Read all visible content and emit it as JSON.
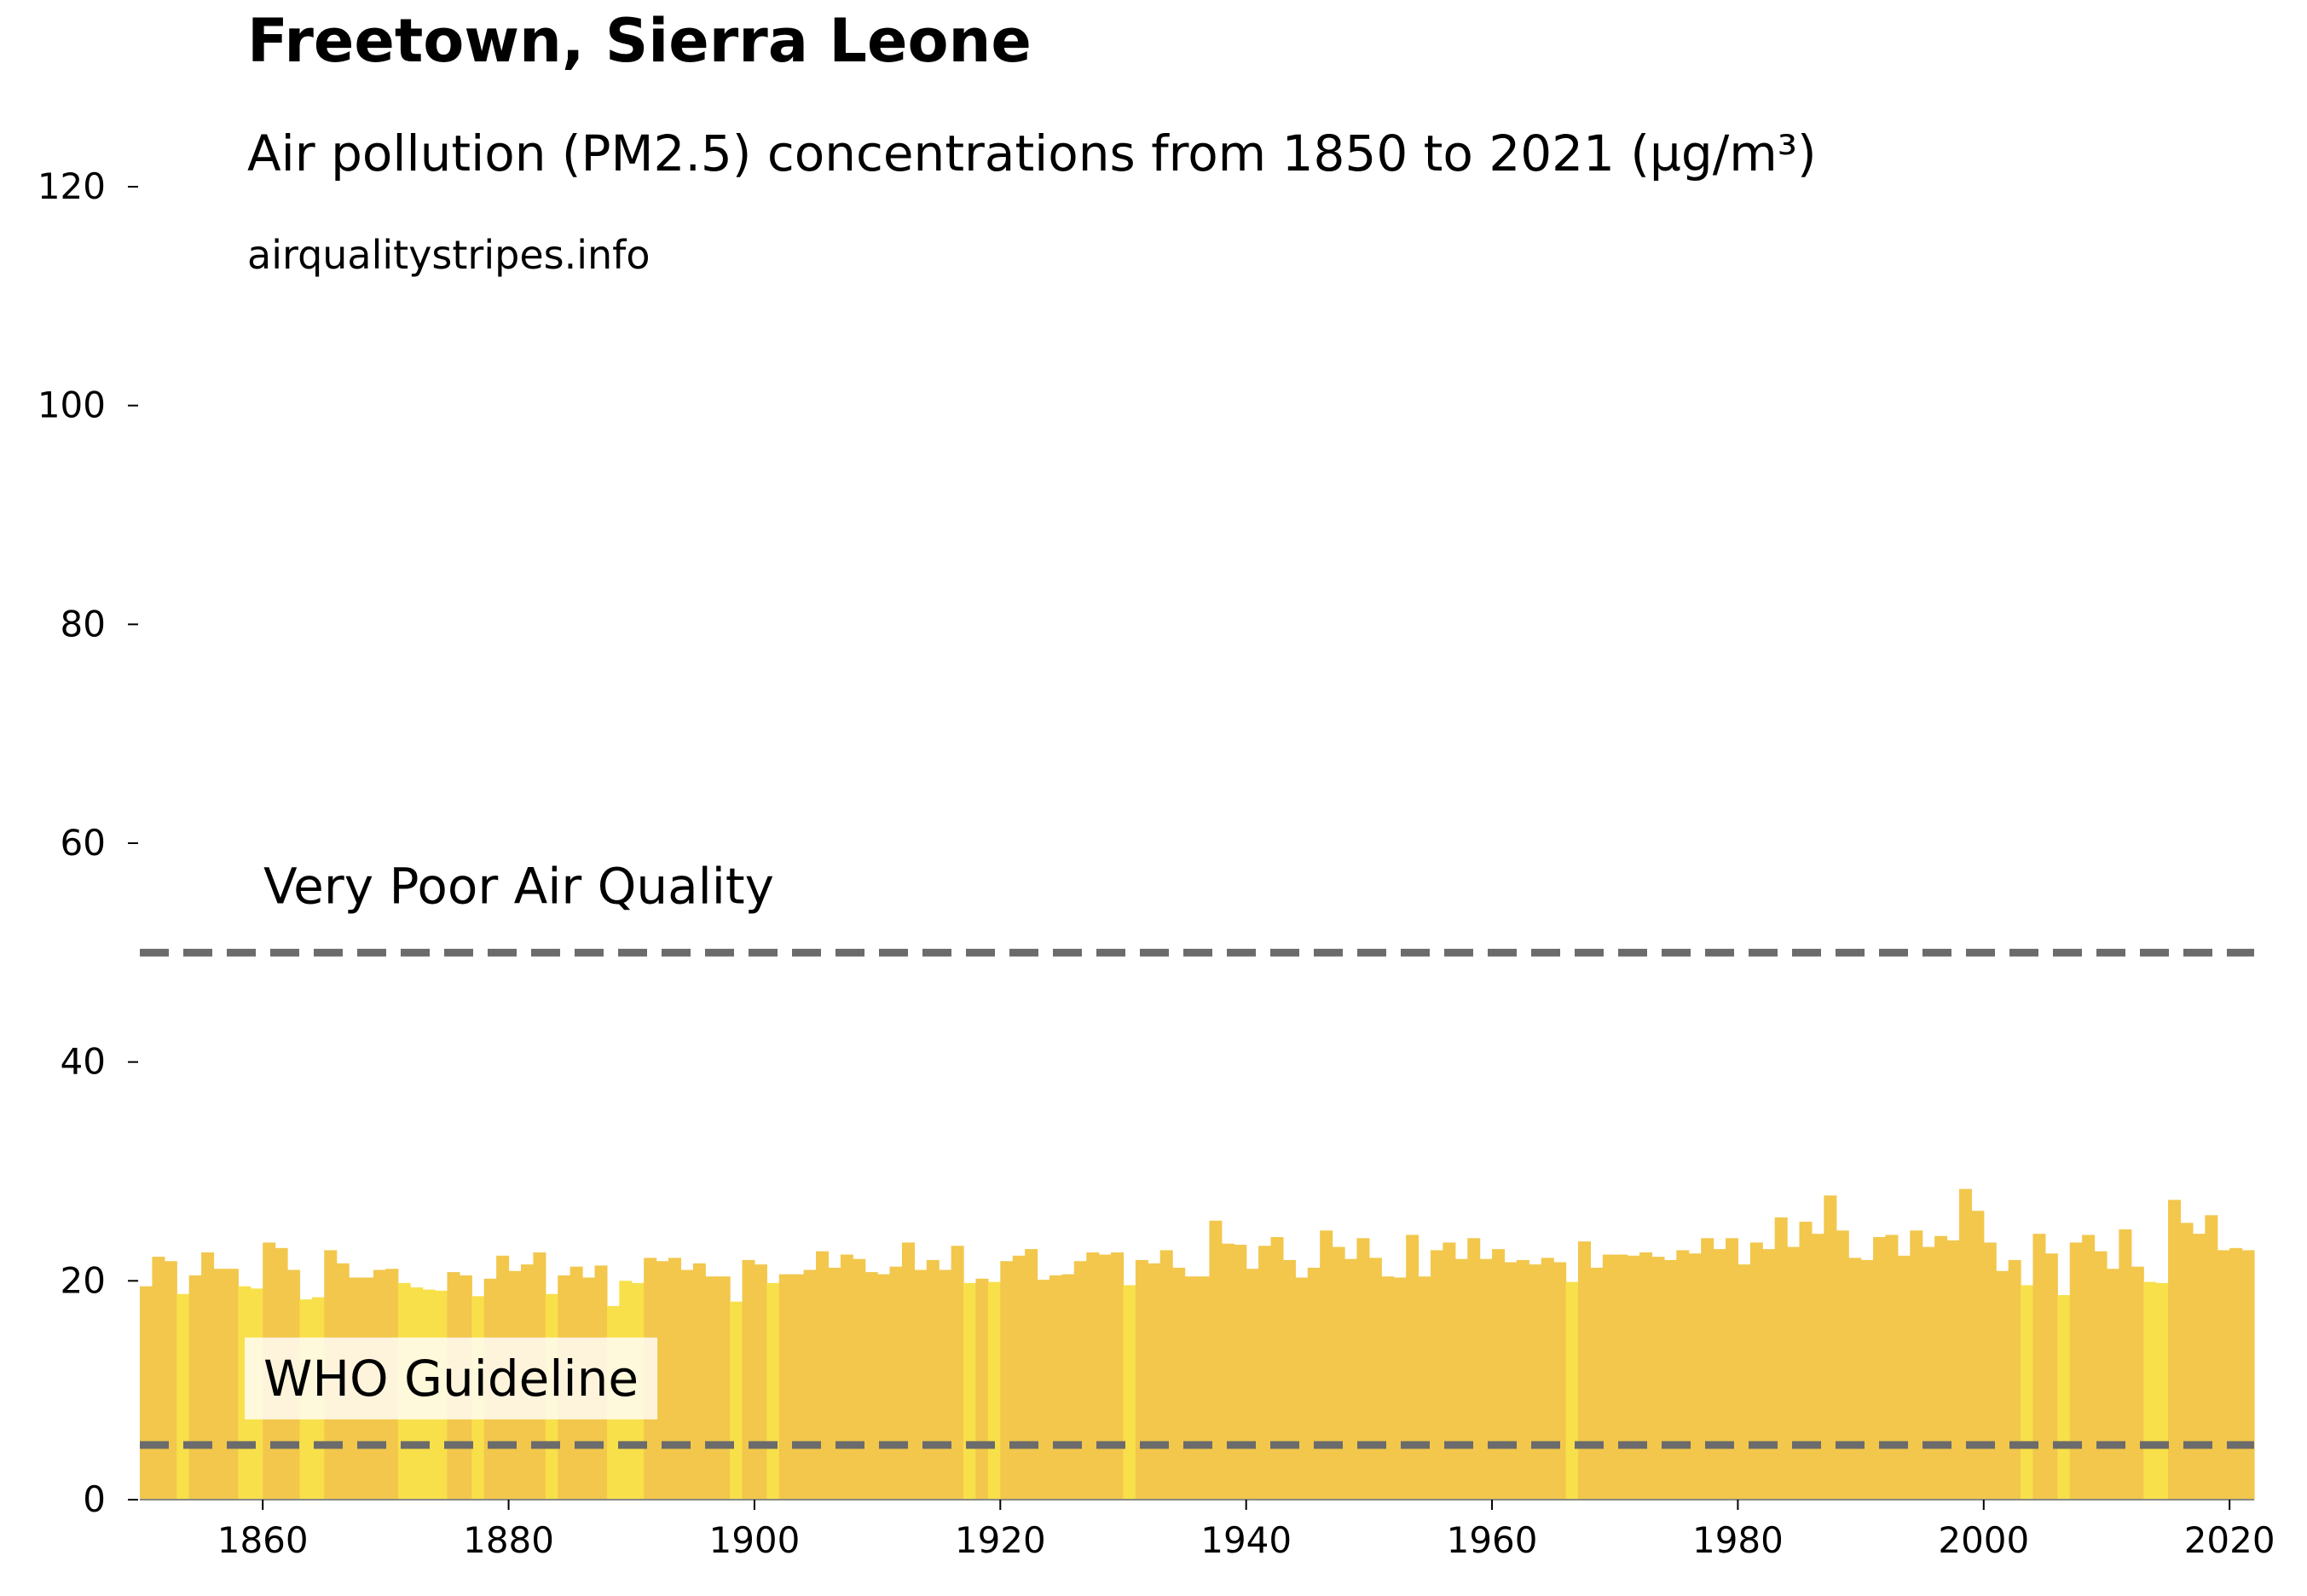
{
  "chart_data": {
    "type": "bar",
    "title": "Freetown, Sierra Leone",
    "subtitle": "Air pollution (PM2.5) concentrations from 1850 to 2021 (µg/m³)",
    "source": "airqualitystripes.info",
    "x": [
      1850,
      1851,
      1852,
      1853,
      1854,
      1855,
      1856,
      1857,
      1858,
      1859,
      1860,
      1861,
      1862,
      1863,
      1864,
      1865,
      1866,
      1867,
      1868,
      1869,
      1870,
      1871,
      1872,
      1873,
      1874,
      1875,
      1876,
      1877,
      1878,
      1879,
      1880,
      1881,
      1882,
      1883,
      1884,
      1885,
      1886,
      1887,
      1888,
      1889,
      1890,
      1891,
      1892,
      1893,
      1894,
      1895,
      1896,
      1897,
      1898,
      1899,
      1900,
      1901,
      1902,
      1903,
      1904,
      1905,
      1906,
      1907,
      1908,
      1909,
      1910,
      1911,
      1912,
      1913,
      1914,
      1915,
      1916,
      1917,
      1918,
      1919,
      1920,
      1921,
      1922,
      1923,
      1924,
      1925,
      1926,
      1927,
      1928,
      1929,
      1930,
      1931,
      1932,
      1933,
      1934,
      1935,
      1936,
      1937,
      1938,
      1939,
      1940,
      1941,
      1942,
      1943,
      1944,
      1945,
      1946,
      1947,
      1948,
      1949,
      1950,
      1951,
      1952,
      1953,
      1954,
      1955,
      1956,
      1957,
      1958,
      1959,
      1960,
      1961,
      1962,
      1963,
      1964,
      1965,
      1966,
      1967,
      1968,
      1969,
      1970,
      1971,
      1972,
      1973,
      1974,
      1975,
      1976,
      1977,
      1978,
      1979,
      1980,
      1981,
      1982,
      1983,
      1984,
      1985,
      1986,
      1987,
      1988,
      1989,
      1990,
      1991,
      1992,
      1993,
      1994,
      1995,
      1996,
      1997,
      1998,
      1999,
      2000,
      2001,
      2002,
      2003,
      2004,
      2005,
      2006,
      2007,
      2008,
      2009,
      2010,
      2011,
      2012,
      2013,
      2014,
      2015,
      2016,
      2017,
      2018,
      2019,
      2020,
      2021
    ],
    "values": [
      19.5,
      22.2,
      21.8,
      18.8,
      20.5,
      22.6,
      21.1,
      21.1,
      19.5,
      19.3,
      23.5,
      23,
      21,
      18.3,
      18.5,
      22.8,
      21.6,
      20.3,
      20.3,
      21,
      21.1,
      19.8,
      19.4,
      19.2,
      19.1,
      20.8,
      20.5,
      18.6,
      20.2,
      22.3,
      20.9,
      21.5,
      22.6,
      18.8,
      20.5,
      21.3,
      20.3,
      21.4,
      17.7,
      20,
      19.8,
      22.1,
      21.8,
      22.1,
      21,
      21.6,
      20.4,
      20.4,
      18.1,
      21.9,
      21.5,
      19.8,
      20.6,
      20.6,
      21,
      22.7,
      21.2,
      22.4,
      22,
      20.8,
      20.6,
      21.3,
      23.5,
      21,
      21.9,
      21,
      23.2,
      19.8,
      20.2,
      19.9,
      21.8,
      22.3,
      22.9,
      20.1,
      20.5,
      20.6,
      21.8,
      22.6,
      22.4,
      22.6,
      19.6,
      21.9,
      21.6,
      22.8,
      21.2,
      20.4,
      20.4,
      25.5,
      23.4,
      23.3,
      21.1,
      23.2,
      24,
      21.9,
      20.3,
      21.2,
      24.6,
      23.1,
      22,
      23.9,
      22.1,
      20.4,
      20.3,
      24.2,
      20.4,
      22.8,
      23.5,
      22,
      23.9,
      22,
      22.9,
      21.7,
      21.9,
      21.5,
      22.1,
      21.7,
      19.9,
      23.6,
      21.2,
      22.4,
      22.4,
      22.3,
      22.6,
      22.2,
      21.9,
      22.8,
      22.5,
      23.9,
      22.9,
      23.9,
      21.5,
      23.5,
      22.9,
      25.8,
      23.1,
      25.4,
      24.3,
      27.8,
      24.6,
      22.1,
      21.9,
      24,
      24.2,
      22.3,
      24.6,
      23.1,
      24.1,
      23.7,
      28.4,
      26.4,
      23.5,
      20.9,
      21.9,
      19.6,
      24.3,
      22.5,
      18.7,
      23.5,
      24.2,
      22.7,
      21.1,
      24.7,
      21.3,
      19.9,
      19.8,
      27.4,
      25.3,
      24.3,
      26,
      22.8,
      23,
      22.8
    ],
    "colors": [
      "#f2c74c",
      "#f2c74c",
      "#f2c74c",
      "#f8e04a",
      "#f2c74c",
      "#f2c74c",
      "#f2c74c",
      "#f2c74c",
      "#f8e04a",
      "#f8e04a",
      "#f2c74c",
      "#f2c74c",
      "#f2c74c",
      "#f8e04a",
      "#f8e04a",
      "#f2c74c",
      "#f2c74c",
      "#f2c74c",
      "#f2c74c",
      "#f2c74c",
      "#f2c74c",
      "#f8e04a",
      "#f8e04a",
      "#f8e04a",
      "#f8e04a",
      "#f2c74c",
      "#f2c74c",
      "#f8e04a",
      "#f2c74c",
      "#f2c74c",
      "#f2c74c",
      "#f2c74c",
      "#f2c74c",
      "#f8e04a",
      "#f2c74c",
      "#f2c74c",
      "#f2c74c",
      "#f2c74c",
      "#f8e04a",
      "#f8e04a",
      "#f8e04a",
      "#f2c74c",
      "#f2c74c",
      "#f2c74c",
      "#f2c74c",
      "#f2c74c",
      "#f2c74c",
      "#f2c74c",
      "#f8e04a",
      "#f2c74c",
      "#f2c74c",
      "#f8e04a",
      "#f2c74c",
      "#f2c74c",
      "#f2c74c",
      "#f2c74c",
      "#f2c74c",
      "#f2c74c",
      "#f2c74c",
      "#f2c74c",
      "#f2c74c",
      "#f2c74c",
      "#f2c74c",
      "#f2c74c",
      "#f2c74c",
      "#f2c74c",
      "#f2c74c",
      "#f8e04a",
      "#f2c74c",
      "#f8e04a",
      "#f2c74c",
      "#f2c74c",
      "#f2c74c",
      "#f2c74c",
      "#f2c74c",
      "#f2c74c",
      "#f2c74c",
      "#f2c74c",
      "#f2c74c",
      "#f2c74c",
      "#f8e04a",
      "#f2c74c",
      "#f2c74c",
      "#f2c74c",
      "#f2c74c",
      "#f2c74c",
      "#f2c74c",
      "#f2c74c",
      "#f2c74c",
      "#f2c74c",
      "#f2c74c",
      "#f2c74c",
      "#f2c74c",
      "#f2c74c",
      "#f2c74c",
      "#f2c74c",
      "#f2c74c",
      "#f2c74c",
      "#f2c74c",
      "#f2c74c",
      "#f2c74c",
      "#f2c74c",
      "#f2c74c",
      "#f2c74c",
      "#f2c74c",
      "#f2c74c",
      "#f2c74c",
      "#f2c74c",
      "#f2c74c",
      "#f2c74c",
      "#f2c74c",
      "#f2c74c",
      "#f2c74c",
      "#f2c74c",
      "#f2c74c",
      "#f2c74c",
      "#f8e04a",
      "#f2c74c",
      "#f2c74c",
      "#f2c74c",
      "#f2c74c",
      "#f2c74c",
      "#f2c74c",
      "#f2c74c",
      "#f2c74c",
      "#f2c74c",
      "#f2c74c",
      "#f2c74c",
      "#f2c74c",
      "#f2c74c",
      "#f2c74c",
      "#f2c74c",
      "#f2c74c",
      "#f2c74c",
      "#f2c74c",
      "#f2c74c",
      "#f2c74c",
      "#f2c74c",
      "#f2c74c",
      "#f2c74c",
      "#f2c74c",
      "#f2c74c",
      "#f2c74c",
      "#f2c74c",
      "#f2c74c",
      "#f2c74c",
      "#f2c74c",
      "#f2c74c",
      "#f2c74c",
      "#f2c74c",
      "#f2c74c",
      "#f2c74c",
      "#f2c74c",
      "#f8e04a",
      "#f2c74c",
      "#f2c74c",
      "#f8e04a",
      "#f2c74c",
      "#f2c74c",
      "#f2c74c",
      "#f2c74c",
      "#f2c74c",
      "#f2c74c",
      "#f8e04a",
      "#f8e04a",
      "#f2c74c",
      "#f2c74c",
      "#f2c74c",
      "#f2c74c",
      "#f2c74c",
      "#f2c74c",
      "#f2c74c"
    ],
    "annotations": [
      {
        "text": "Very Poor Air Quality",
        "y": 50
      },
      {
        "text": "WHO Guideline",
        "y": 5
      }
    ],
    "line_color": "#6b6b6b",
    "xlim": [
      1850,
      2022
    ],
    "xticks": [
      1860,
      1880,
      1900,
      1920,
      1940,
      1960,
      1980,
      2000,
      2020
    ],
    "ylim": [
      0,
      120
    ],
    "yticks": [
      0,
      20,
      40,
      60,
      80,
      100,
      120
    ],
    "grid": false
  }
}
